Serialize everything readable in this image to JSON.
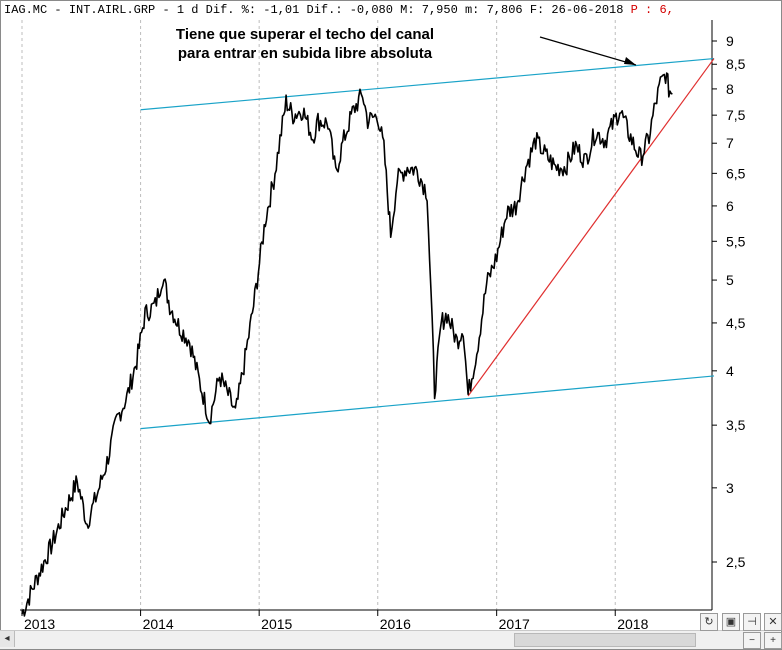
{
  "header": {
    "symbol": "IAG.MC",
    "sep1": "-",
    "name": "INT.AIRL.GRP",
    "sep2": "-",
    "period": "1 d",
    "dif_pct_label": "Dif. %:",
    "dif_pct_value": "-1,01",
    "dif_label": "Dif.:",
    "dif_value": "-0,080",
    "max_label": "M:",
    "max_value": "7,950",
    "min_label": "m:",
    "min_value": "7,806",
    "date_label": "F:",
    "date_value": "26-06-2018",
    "extra": "P : 6,"
  },
  "annotation": {
    "text": "Tiene que superar el techo del canal para entrar en subida libre absoluta"
  },
  "chart_data": {
    "type": "line",
    "y_scale": "log",
    "ylim": [
      2.2,
      9.3
    ],
    "xlim": [
      "2013-01-01",
      "2018-11-01"
    ],
    "y_ticks": [
      "9",
      "8,5",
      "8",
      "7,5",
      "7",
      "6,5",
      "6",
      "5,5",
      "5",
      "4,5",
      "4",
      "3,5",
      "3",
      "2,5"
    ],
    "y_tick_values": [
      9,
      8.5,
      8,
      7.5,
      7,
      6.5,
      6,
      5.5,
      5,
      4.5,
      4,
      3.5,
      3,
      2.5
    ],
    "x_ticks": [
      "2013",
      "2014",
      "2015",
      "2016",
      "2017",
      "2018"
    ],
    "x_tick_dates": [
      "2013-01-01",
      "2014-01-01",
      "2015-01-01",
      "2016-01-01",
      "2017-01-01",
      "2018-01-01"
    ],
    "price_series": {
      "name": "",
      "color": "#000000",
      "points": [
        [
          "2013-01-01",
          2.2
        ],
        [
          "2013-02-15",
          2.4
        ],
        [
          "2013-04-01",
          2.6
        ],
        [
          "2013-05-15",
          2.85
        ],
        [
          "2013-06-20",
          3.05
        ],
        [
          "2013-07-20",
          2.75
        ],
        [
          "2013-08-20",
          2.95
        ],
        [
          "2013-09-20",
          3.2
        ],
        [
          "2013-10-20",
          3.55
        ],
        [
          "2013-11-20",
          3.75
        ],
        [
          "2013-12-20",
          4.1
        ],
        [
          "2014-01-15",
          4.6
        ],
        [
          "2014-02-15",
          4.7
        ],
        [
          "2014-03-10",
          5.05
        ],
        [
          "2014-04-01",
          4.7
        ],
        [
          "2014-05-01",
          4.45
        ],
        [
          "2014-06-01",
          4.3
        ],
        [
          "2014-07-01",
          3.9
        ],
        [
          "2014-08-01",
          3.55
        ],
        [
          "2014-09-01",
          3.95
        ],
        [
          "2014-10-01",
          3.75
        ],
        [
          "2014-10-20",
          3.6
        ],
        [
          "2014-11-15",
          4.05
        ],
        [
          "2014-12-15",
          4.7
        ],
        [
          "2015-01-20",
          5.8
        ],
        [
          "2015-02-15",
          6.4
        ],
        [
          "2015-03-10",
          7.2
        ],
        [
          "2015-03-25",
          7.75
        ],
        [
          "2015-04-15",
          7.5
        ],
        [
          "2015-05-15",
          7.6
        ],
        [
          "2015-06-15",
          7.1
        ],
        [
          "2015-07-01",
          7.4
        ],
        [
          "2015-08-01",
          7.35
        ],
        [
          "2015-08-25",
          6.5
        ],
        [
          "2015-09-15",
          7.0
        ],
        [
          "2015-10-15",
          7.55
        ],
        [
          "2015-11-15",
          7.9
        ],
        [
          "2015-12-01",
          7.4
        ],
        [
          "2016-01-01",
          7.5
        ],
        [
          "2016-01-20",
          6.9
        ],
        [
          "2016-02-10",
          5.6
        ],
        [
          "2016-03-01",
          6.4
        ],
        [
          "2016-04-01",
          6.6
        ],
        [
          "2016-05-01",
          6.55
        ],
        [
          "2016-06-01",
          6.2
        ],
        [
          "2016-06-24",
          3.8
        ],
        [
          "2016-07-15",
          4.5
        ],
        [
          "2016-08-01",
          4.6
        ],
        [
          "2016-09-01",
          4.3
        ],
        [
          "2016-09-20",
          4.45
        ],
        [
          "2016-10-05",
          3.77
        ],
        [
          "2016-11-01",
          4.2
        ],
        [
          "2016-12-01",
          4.95
        ],
        [
          "2017-01-01",
          5.3
        ],
        [
          "2017-02-01",
          5.9
        ],
        [
          "2017-03-01",
          6.0
        ],
        [
          "2017-04-01",
          6.6
        ],
        [
          "2017-05-01",
          7.05
        ],
        [
          "2017-06-01",
          6.8
        ],
        [
          "2017-07-01",
          6.6
        ],
        [
          "2017-08-01",
          6.6
        ],
        [
          "2017-09-01",
          6.95
        ],
        [
          "2017-10-01",
          6.7
        ],
        [
          "2017-11-01",
          7.2
        ],
        [
          "2017-12-01",
          7.05
        ],
        [
          "2018-01-15",
          7.6
        ],
        [
          "2018-02-10",
          7.2
        ],
        [
          "2018-03-01",
          6.95
        ],
        [
          "2018-03-20",
          6.75
        ],
        [
          "2018-04-15",
          7.1
        ],
        [
          "2018-05-01",
          7.6
        ],
        [
          "2018-05-20",
          8.1
        ],
        [
          "2018-06-05",
          8.3
        ],
        [
          "2018-06-15",
          8.0
        ],
        [
          "2018-06-26",
          7.9
        ]
      ]
    },
    "trendlines": [
      {
        "name": "",
        "color": "#1aa3c8",
        "from": [
          "2014-01-01",
          7.6
        ],
        "to": [
          "2018-11-01",
          8.62
        ]
      },
      {
        "name": "",
        "color": "#1aa3c8",
        "from": [
          "2014-01-01",
          3.47
        ],
        "to": [
          "2018-11-01",
          3.95
        ]
      },
      {
        "name": "",
        "color": "#e03030",
        "from": [
          "2016-10-05",
          3.76
        ],
        "to": [
          "2018-11-01",
          8.62
        ]
      }
    ]
  }
}
